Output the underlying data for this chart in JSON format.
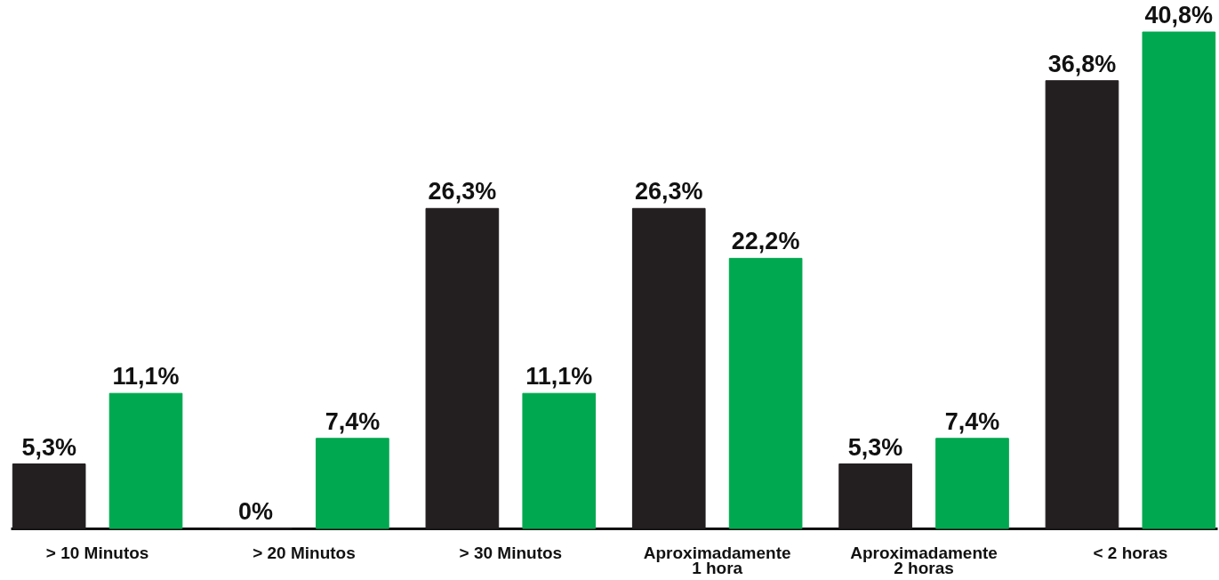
{
  "chart_data": {
    "type": "bar",
    "categories": [
      "> 10 Minutos",
      "> 20 Minutos",
      "> 30 Minutos",
      "Aproximadamente 1 hora",
      "Aproximadamente 2 horas",
      "< 2 horas"
    ],
    "series": [
      {
        "color": "#231f20",
        "values": [
          5.3,
          0,
          26.3,
          26.3,
          5.3,
          36.8
        ],
        "value_labels": [
          "5,3%",
          "0%",
          "26,3%",
          "26,3%",
          "5,3%",
          "36,8%"
        ]
      },
      {
        "color": "#00a84f",
        "values": [
          11.1,
          7.4,
          11.1,
          22.2,
          7.4,
          40.8
        ],
        "value_labels": [
          "11,1%",
          "7,4%",
          "11,1%",
          "22,2%",
          "7,4%",
          "40,8%"
        ]
      }
    ],
    "grid": false
  }
}
